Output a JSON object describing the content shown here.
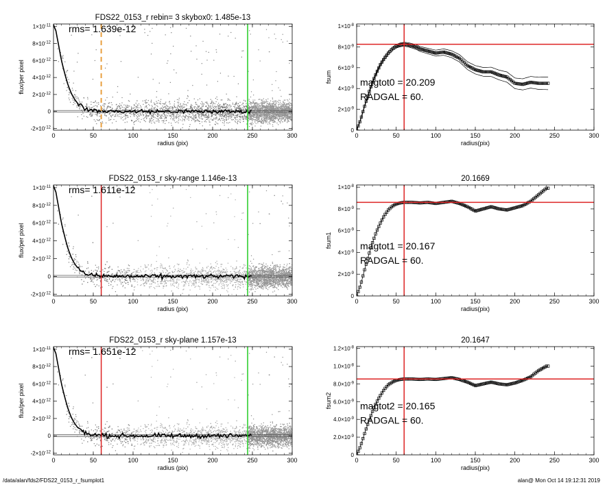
{
  "footer": {
    "path": "/data/alan/fds2/FDS22_0153_r_fsumplot1",
    "stamp": "alan@  Mon Oct 14 19:12:31 2019"
  },
  "colors": {
    "red": "#dd2222",
    "green": "#22cc22",
    "orange": "#e8a040",
    "grey": "#9a9a9a",
    "black": "#000000"
  },
  "chart_data": [
    {
      "type": "scatter",
      "title": "FDS22_0153_r rebin= 3    skybox0:  1.485e-13",
      "xlabel": "radius (pix)",
      "ylabel": "flux/per pixel",
      "xlim": [
        0,
        300
      ],
      "ylim": [
        -2.2e-12,
        1.03e-11
      ],
      "xticks": [
        0,
        50,
        100,
        150,
        200,
        250,
        300
      ],
      "yticks": [
        {
          "v": -2e-12,
          "m": "-2×10",
          "e": "-12"
        },
        {
          "v": 0,
          "m": "0",
          "e": ""
        },
        {
          "v": 2e-12,
          "m": "2×10",
          "e": "-12"
        },
        {
          "v": 4e-12,
          "m": "4×10",
          "e": "-12"
        },
        {
          "v": 6e-12,
          "m": "6×10",
          "e": "-12"
        },
        {
          "v": 8e-12,
          "m": "8×10",
          "e": "-12"
        },
        {
          "v": 1e-11,
          "m": "1×10",
          "e": "-11"
        }
      ],
      "annotation": "rms= 1.639e-12",
      "profile_x": [
        0,
        3,
        6,
        10,
        14,
        18,
        22,
        26,
        30,
        35,
        40,
        50,
        60,
        80,
        100,
        150,
        200,
        250
      ],
      "profile_y": [
        1.02e-11,
        9.5e-12,
        8e-12,
        6e-12,
        4.5e-12,
        3.2e-12,
        2.2e-12,
        1.5e-12,
        1e-12,
        6e-13,
        3e-13,
        1e-13,
        5e-14,
        0,
        0,
        0,
        0,
        0
      ],
      "vlines": [
        {
          "x": 60,
          "color": "orange",
          "style": "dashed"
        },
        {
          "x": 244,
          "color": "green",
          "style": "solid"
        }
      ]
    },
    {
      "type": "scatter",
      "title": "",
      "xlabel": "radius(pix)",
      "ylabel": "fsum",
      "xlim": [
        0,
        300
      ],
      "ylim": [
        0,
        1.02e-08
      ],
      "xticks": [
        0,
        50,
        100,
        150,
        200,
        250,
        300
      ],
      "yticks": [
        {
          "v": 0,
          "m": "0",
          "e": ""
        },
        {
          "v": 2e-09,
          "m": "2×10",
          "e": "-9"
        },
        {
          "v": 4e-09,
          "m": "4×10",
          "e": "-9"
        },
        {
          "v": 6e-09,
          "m": "6×10",
          "e": "-9"
        },
        {
          "v": 8e-09,
          "m": "8×10",
          "e": "-9"
        },
        {
          "v": 1e-08,
          "m": "1×10",
          "e": "-8"
        }
      ],
      "annotation_lines": [
        "magtot0 =  20.209",
        "RADGAL =     60."
      ],
      "curve_x": [
        0,
        5,
        10,
        15,
        20,
        25,
        30,
        35,
        40,
        45,
        50,
        55,
        60,
        65,
        70,
        75,
        80,
        90,
        100,
        110,
        120,
        130,
        140,
        150,
        160,
        170,
        180,
        190,
        200,
        210,
        220,
        230,
        240
      ],
      "curve_y": [
        0,
        1e-09,
        2.3e-09,
        3.5e-09,
        4.6e-09,
        5.5e-09,
        6.3e-09,
        6.9e-09,
        7.4e-09,
        7.8e-09,
        8.05e-09,
        8.2e-09,
        8.25e-09,
        8.2e-09,
        8.1e-09,
        8e-09,
        7.8e-09,
        7.6e-09,
        7.4e-09,
        7.5e-09,
        7.3e-09,
        6.9e-09,
        6.2e-09,
        5.8e-09,
        5.6e-09,
        5.6e-09,
        5.3e-09,
        5.1e-09,
        4.5e-09,
        4.4e-09,
        4.6e-09,
        4.5e-09,
        4.5e-09
      ],
      "err": 5.5e-10,
      "hline": 8.25e-09,
      "vline": 60
    },
    {
      "type": "scatter",
      "title": "FDS22_0153_r sky-range  1.146e-13",
      "xlabel": "radius (pix)",
      "ylabel": "flux/per pixel",
      "xlim": [
        0,
        300
      ],
      "ylim": [
        -2.2e-12,
        1.03e-11
      ],
      "xticks": [
        0,
        50,
        100,
        150,
        200,
        250,
        300
      ],
      "yticks": [
        {
          "v": -2e-12,
          "m": "-2×10",
          "e": "-12"
        },
        {
          "v": 0,
          "m": "0",
          "e": ""
        },
        {
          "v": 2e-12,
          "m": "2×10",
          "e": "-12"
        },
        {
          "v": 4e-12,
          "m": "4×10",
          "e": "-12"
        },
        {
          "v": 6e-12,
          "m": "6×10",
          "e": "-12"
        },
        {
          "v": 8e-12,
          "m": "8×10",
          "e": "-12"
        },
        {
          "v": 1e-11,
          "m": "1×10",
          "e": "-11"
        }
      ],
      "annotation": "rms= 1.611e-12",
      "profile_x": [
        0,
        3,
        6,
        10,
        14,
        18,
        22,
        26,
        30,
        35,
        40,
        50,
        60,
        80,
        100,
        150,
        200,
        250
      ],
      "profile_y": [
        1.02e-11,
        9.5e-12,
        8e-12,
        6e-12,
        4.5e-12,
        3.2e-12,
        2.2e-12,
        1.5e-12,
        1e-12,
        6e-13,
        3e-13,
        1e-13,
        5e-14,
        0,
        0,
        0,
        0,
        0
      ],
      "vlines": [
        {
          "x": 60,
          "color": "red",
          "style": "solid"
        },
        {
          "x": 244,
          "color": "green",
          "style": "solid"
        }
      ]
    },
    {
      "type": "scatter",
      "title": "20.1669",
      "xlabel": "radius(pix)",
      "ylabel": "fsum1",
      "xlim": [
        0,
        300
      ],
      "ylim": [
        0,
        1.02e-08
      ],
      "xticks": [
        0,
        50,
        100,
        150,
        200,
        250,
        300
      ],
      "yticks": [
        {
          "v": 0,
          "m": "0",
          "e": ""
        },
        {
          "v": 2e-09,
          "m": "2×10",
          "e": "-9"
        },
        {
          "v": 4e-09,
          "m": "4×10",
          "e": "-9"
        },
        {
          "v": 6e-09,
          "m": "6×10",
          "e": "-9"
        },
        {
          "v": 8e-09,
          "m": "8×10",
          "e": "-9"
        },
        {
          "v": 1e-08,
          "m": "1×10",
          "e": "-8"
        }
      ],
      "annotation_lines": [
        "magtot1 =  20.167",
        "RADGAL =     60."
      ],
      "curve_x": [
        0,
        5,
        10,
        15,
        20,
        25,
        30,
        35,
        40,
        45,
        50,
        55,
        60,
        70,
        80,
        90,
        100,
        110,
        120,
        130,
        140,
        150,
        160,
        170,
        180,
        190,
        200,
        210,
        220,
        230,
        240
      ],
      "curve_y": [
        0,
        1e-09,
        2.4e-09,
        3.7e-09,
        4.9e-09,
        5.9e-09,
        6.7e-09,
        7.4e-09,
        7.9e-09,
        8.25e-09,
        8.45e-09,
        8.55e-09,
        8.6e-09,
        8.6e-09,
        8.55e-09,
        8.6e-09,
        8.5e-09,
        8.6e-09,
        8.7e-09,
        8.5e-09,
        8.2e-09,
        7.8e-09,
        8e-09,
        8.2e-09,
        8e-09,
        7.9e-09,
        8.1e-09,
        8.3e-09,
        8.7e-09,
        9.3e-09,
        9.9e-09
      ],
      "err": 0,
      "hline": 8.6e-09,
      "vline": 60
    },
    {
      "type": "scatter",
      "title": "FDS22_0153_r sky-plane  1.157e-13",
      "xlabel": "radius (pix)",
      "ylabel": "flux/per pixel",
      "xlim": [
        0,
        300
      ],
      "ylim": [
        -2.2e-12,
        1.03e-11
      ],
      "xticks": [
        0,
        50,
        100,
        150,
        200,
        250,
        300
      ],
      "yticks": [
        {
          "v": -2e-12,
          "m": "-2×10",
          "e": "-12"
        },
        {
          "v": 0,
          "m": "0",
          "e": ""
        },
        {
          "v": 2e-12,
          "m": "2×10",
          "e": "-12"
        },
        {
          "v": 4e-12,
          "m": "4×10",
          "e": "-12"
        },
        {
          "v": 6e-12,
          "m": "6×10",
          "e": "-12"
        },
        {
          "v": 8e-12,
          "m": "8×10",
          "e": "-12"
        },
        {
          "v": 1e-11,
          "m": "1×10",
          "e": "-11"
        }
      ],
      "annotation": "rms= 1.651e-12",
      "profile_x": [
        0,
        3,
        6,
        10,
        14,
        18,
        22,
        26,
        30,
        35,
        40,
        50,
        60,
        80,
        100,
        150,
        200,
        250
      ],
      "profile_y": [
        1.02e-11,
        9.5e-12,
        8e-12,
        6e-12,
        4.5e-12,
        3.2e-12,
        2.2e-12,
        1.5e-12,
        1e-12,
        6e-13,
        3e-13,
        1e-13,
        5e-14,
        0,
        0,
        0,
        0,
        0
      ],
      "vlines": [
        {
          "x": 60,
          "color": "red",
          "style": "solid"
        },
        {
          "x": 244,
          "color": "green",
          "style": "solid"
        }
      ]
    },
    {
      "type": "scatter",
      "title": "20.1647",
      "xlabel": "radius(pix)",
      "ylabel": "fsum2",
      "xlim": [
        0,
        300
      ],
      "ylim": [
        0,
        1.22e-08
      ],
      "xticks": [
        0,
        50,
        100,
        150,
        200,
        250,
        300
      ],
      "yticks": [
        {
          "v": 0,
          "m": "0",
          "e": ""
        },
        {
          "v": 2e-09,
          "m": "2.0×10",
          "e": "-9"
        },
        {
          "v": 4e-09,
          "m": "4.0×10",
          "e": "-9"
        },
        {
          "v": 6e-09,
          "m": "6.0×10",
          "e": "-9"
        },
        {
          "v": 8e-09,
          "m": "8.0×10",
          "e": "-9"
        },
        {
          "v": 1e-08,
          "m": "1.0×10",
          "e": "-8"
        },
        {
          "v": 1.2e-08,
          "m": "1.2×10",
          "e": "-8"
        }
      ],
      "annotation_lines": [
        "magtot2 =  20.165",
        "RADGAL =     60."
      ],
      "curve_x": [
        0,
        5,
        10,
        15,
        20,
        25,
        30,
        35,
        40,
        45,
        50,
        55,
        60,
        70,
        80,
        90,
        100,
        110,
        120,
        130,
        140,
        150,
        160,
        170,
        180,
        190,
        200,
        210,
        220,
        230,
        240
      ],
      "curve_y": [
        0,
        1e-09,
        2.4e-09,
        3.7e-09,
        4.9e-09,
        5.9e-09,
        6.7e-09,
        7.4e-09,
        7.9e-09,
        8.2e-09,
        8.4e-09,
        8.5e-09,
        8.55e-09,
        8.55e-09,
        8.5e-09,
        8.55e-09,
        8.5e-09,
        8.6e-09,
        8.7e-09,
        8.5e-09,
        8.2e-09,
        7.8e-09,
        8e-09,
        8.2e-09,
        8e-09,
        7.9e-09,
        8.1e-09,
        8.4e-09,
        8.8e-09,
        9.5e-09,
        1e-08
      ],
      "err": 0,
      "hline": 8.55e-09,
      "vline": 60
    }
  ]
}
